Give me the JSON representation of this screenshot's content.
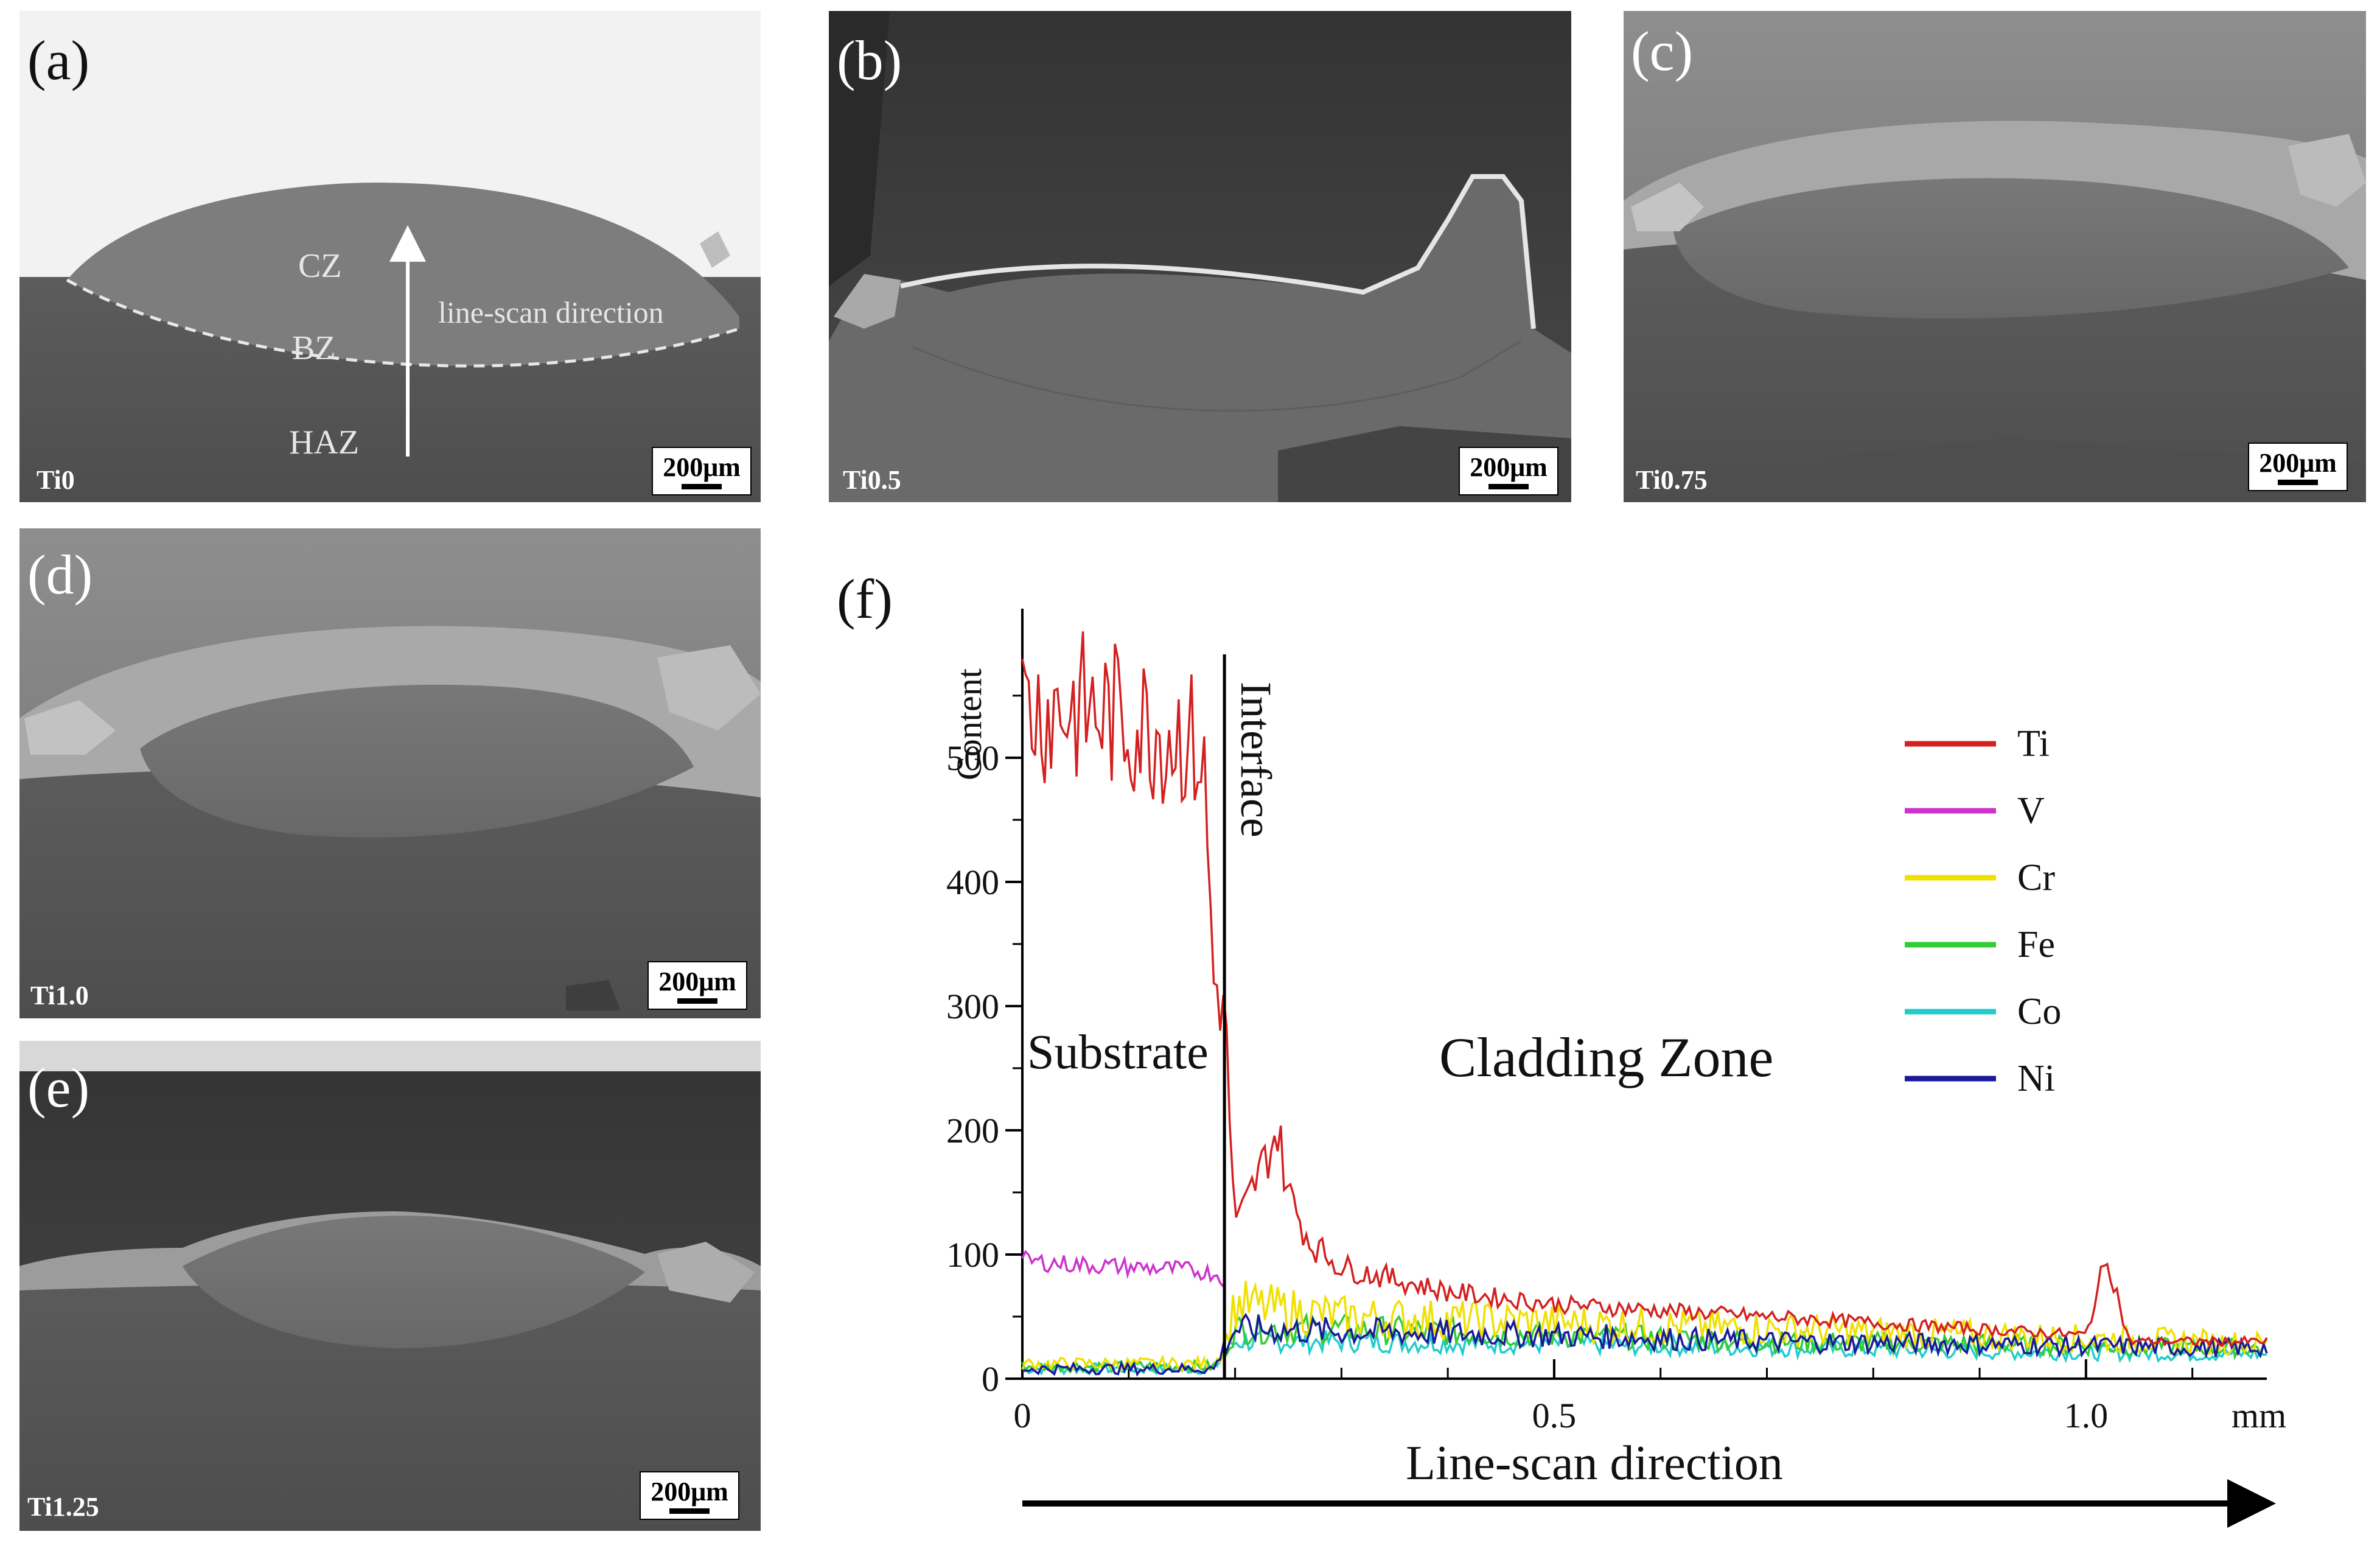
{
  "figure": {
    "panels": [
      {
        "letter": "(a)",
        "sample": "Ti0",
        "scale": "200μm",
        "annotations": {
          "cz": "CZ",
          "bz": "BZ",
          "haz": "HAZ",
          "arrow": "line-scan direction"
        }
      },
      {
        "letter": "(b)",
        "sample": "Ti0.5",
        "scale": "200μm"
      },
      {
        "letter": "(c)",
        "sample": "Ti0.75",
        "scale": "200μm"
      },
      {
        "letter": "(d)",
        "sample": "Ti1.0",
        "scale": "200μm"
      },
      {
        "letter": "(e)",
        "sample": "Ti1.25",
        "scale": "200μm"
      }
    ],
    "panel_f": {
      "letter": "(f)",
      "ylabel": "Content",
      "x_unit": "mm",
      "xlabel": "Line-scan direction",
      "interface_label": "Interface",
      "substrate_label": "Substrate",
      "cladding_label": "Cladding Zone"
    }
  },
  "chart_data": {
    "type": "line",
    "xlim": [
      0,
      1.17
    ],
    "ylim": [
      0,
      620
    ],
    "x_ticks": [
      0,
      0.5,
      1.0
    ],
    "x_tick_labels": [
      "0",
      "0.5",
      "1.0"
    ],
    "y_ticks": [
      0,
      100,
      200,
      300,
      400,
      500
    ],
    "interface_x": 0.19,
    "legend_position": "right",
    "series": [
      {
        "name": "Ti",
        "color": "#d42020",
        "x": [
          0,
          0.05,
          0.1,
          0.15,
          0.17,
          0.18,
          0.19,
          0.2,
          0.22,
          0.24,
          0.25,
          0.27,
          0.3,
          0.4,
          0.5,
          0.6,
          0.7,
          0.8,
          0.9,
          1.0,
          1.02,
          1.04,
          1.1,
          1.17
        ],
        "y": [
          540,
          540,
          530,
          520,
          500,
          320,
          300,
          120,
          160,
          200,
          150,
          110,
          90,
          70,
          60,
          55,
          50,
          45,
          40,
          35,
          100,
          30,
          30,
          30
        ]
      },
      {
        "name": "V",
        "color": "#cc33cc",
        "x": [
          0,
          0.05,
          0.1,
          0.15,
          0.18,
          0.19
        ],
        "y": [
          95,
          92,
          90,
          88,
          85,
          80
        ]
      },
      {
        "name": "Cr",
        "color": "#f0e000",
        "x": [
          0,
          0.1,
          0.18,
          0.19,
          0.2,
          0.25,
          0.3,
          0.5,
          0.7,
          0.9,
          1.1,
          1.17
        ],
        "y": [
          12,
          12,
          12,
          25,
          60,
          55,
          50,
          45,
          40,
          35,
          30,
          28
        ]
      },
      {
        "name": "Fe",
        "color": "#33cc33",
        "x": [
          0,
          0.1,
          0.18,
          0.19,
          0.2,
          0.3,
          0.5,
          0.7,
          0.9,
          1.1,
          1.17
        ],
        "y": [
          10,
          10,
          10,
          22,
          40,
          40,
          35,
          30,
          28,
          25,
          25
        ]
      },
      {
        "name": "Co",
        "color": "#22cccc",
        "x": [
          0,
          0.1,
          0.18,
          0.19,
          0.2,
          0.3,
          0.5,
          0.7,
          0.9,
          1.1,
          1.17
        ],
        "y": [
          8,
          8,
          8,
          20,
          30,
          30,
          28,
          25,
          22,
          20,
          20
        ]
      },
      {
        "name": "Ni",
        "color": "#1a1a99",
        "x": [
          0,
          0.1,
          0.18,
          0.19,
          0.2,
          0.3,
          0.5,
          0.7,
          0.9,
          1.1,
          1.17
        ],
        "y": [
          8,
          8,
          8,
          25,
          40,
          38,
          35,
          30,
          28,
          25,
          25
        ]
      }
    ]
  }
}
